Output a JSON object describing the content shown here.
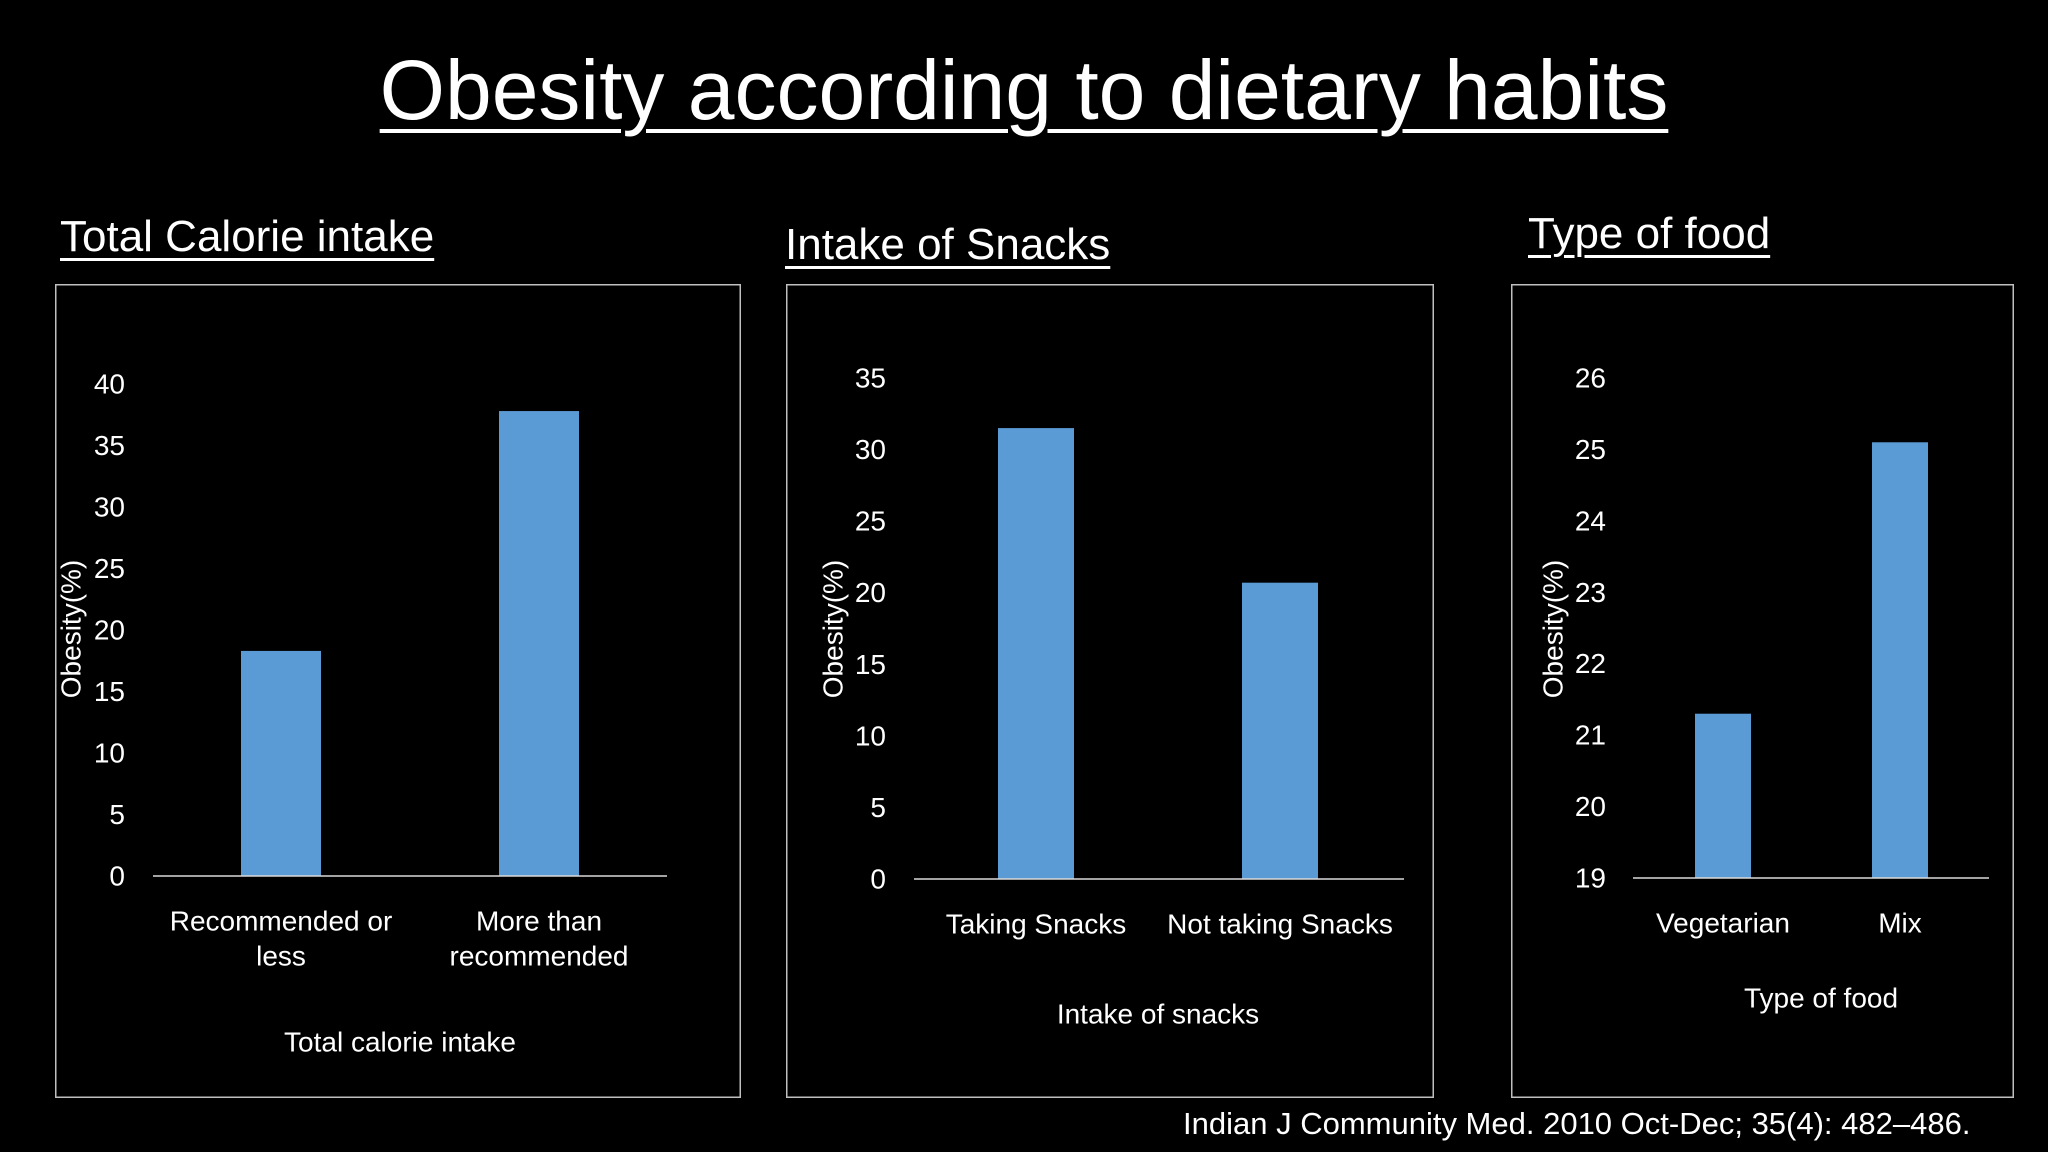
{
  "slide": {
    "title": "Obesity according to dietary habits",
    "citation": "Indian J Community Med. 2010 Oct-Dec; 35(4): 482–486."
  },
  "colors": {
    "background": "#000000",
    "bar": "#5b9bd5",
    "text": "#ffffff",
    "frame": "#bfbfbf"
  },
  "chart_data": [
    {
      "type": "bar",
      "heading": "Total Calorie intake",
      "categories": [
        [
          "Recommended or",
          "less"
        ],
        [
          "More than",
          "recommended"
        ]
      ],
      "values": [
        18.3,
        37.8
      ],
      "xlabel": "Total calorie intake",
      "ylabel": "Obesity(%)",
      "ylim": [
        0,
        40
      ],
      "yticks": [
        0,
        5,
        10,
        15,
        20,
        25,
        30,
        35,
        40
      ],
      "grid": false,
      "legend": "none"
    },
    {
      "type": "bar",
      "heading": "Intake of Snacks",
      "categories": [
        [
          "Taking Snacks"
        ],
        [
          "Not taking Snacks"
        ]
      ],
      "values": [
        31.5,
        20.7
      ],
      "xlabel": "Intake of snacks",
      "ylabel": "Obesity(%)",
      "ylim": [
        0,
        35
      ],
      "yticks": [
        0,
        5,
        10,
        15,
        20,
        25,
        30,
        35
      ],
      "grid": false,
      "legend": "none"
    },
    {
      "type": "bar",
      "heading": "Type of food",
      "categories": [
        [
          "Vegetarian"
        ],
        [
          "Mix"
        ]
      ],
      "values": [
        21.3,
        25.1
      ],
      "xlabel": "Type of food",
      "ylabel": "Obesity(%)",
      "ylim": [
        19,
        26
      ],
      "yticks": [
        19,
        20,
        21,
        22,
        23,
        24,
        25,
        26
      ],
      "grid": false,
      "legend": "none"
    }
  ]
}
